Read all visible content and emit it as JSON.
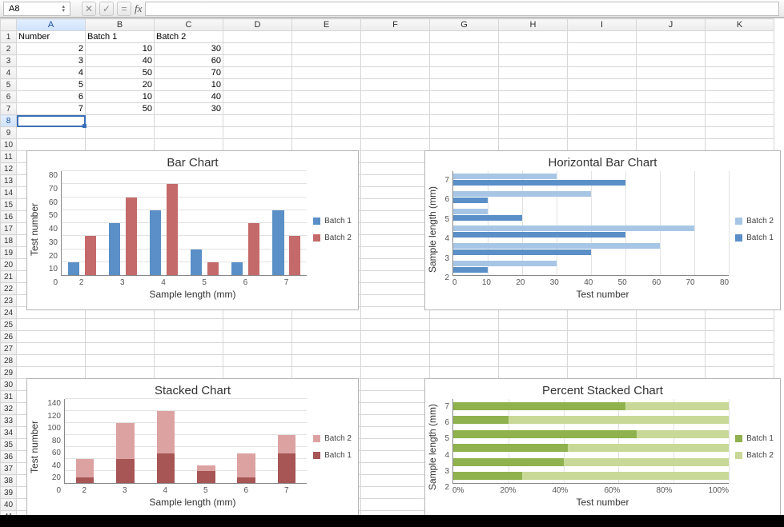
{
  "workbook": {
    "active_cell_ref": "A8",
    "columns": [
      "A",
      "B",
      "C",
      "D",
      "E",
      "F",
      "G",
      "H",
      "I",
      "J",
      "K"
    ],
    "row_count": 41,
    "headers": {
      "A": "Number",
      "B": "Batch 1",
      "C": "Batch 2"
    },
    "data_rows": [
      {
        "A": 2,
        "B": 10,
        "C": 30
      },
      {
        "A": 3,
        "B": 40,
        "C": 60
      },
      {
        "A": 4,
        "B": 50,
        "C": 70
      },
      {
        "A": 5,
        "B": 20,
        "C": 10
      },
      {
        "A": 6,
        "B": 10,
        "C": 40
      },
      {
        "A": 7,
        "B": 50,
        "C": 30
      }
    ]
  },
  "charts": {
    "bar_chart": {
      "type": "bar",
      "title": "Bar Chart",
      "xlabel": "Sample length (mm)",
      "ylabel": "Test number",
      "categories": [
        2,
        3,
        4,
        5,
        6,
        7
      ],
      "series": [
        {
          "name": "Batch 1",
          "values": [
            10,
            40,
            50,
            20,
            10,
            50
          ],
          "color": "#5a8fc7"
        },
        {
          "name": "Batch 2",
          "values": [
            30,
            60,
            70,
            10,
            40,
            30
          ],
          "color": "#c56a6a"
        }
      ],
      "ylim": [
        0,
        80
      ],
      "ytick_step": 10,
      "grid_color": "#e2e2e2",
      "bar_group_gap": 0.4
    },
    "hbar_chart": {
      "type": "hbar",
      "title": "Horizontal Bar Chart",
      "xlabel": "Test number",
      "ylabel": "Sample length (mm)",
      "categories": [
        2,
        3,
        4,
        5,
        6,
        7
      ],
      "series": [
        {
          "name": "Batch 2",
          "values": [
            30,
            60,
            70,
            10,
            40,
            30
          ],
          "color": "#a7c6e6"
        },
        {
          "name": "Batch 1",
          "values": [
            10,
            40,
            50,
            20,
            10,
            50
          ],
          "color": "#5a8fc7"
        }
      ],
      "xlim": [
        0,
        80
      ],
      "xtick_step": 10,
      "grid_color": "#e2e2e2"
    },
    "stacked_chart": {
      "type": "stacked-bar",
      "title": "Stacked Chart",
      "xlabel": "Sample length (mm)",
      "ylabel": "Test number",
      "categories": [
        2,
        3,
        4,
        5,
        6,
        7
      ],
      "series": [
        {
          "name": "Batch 2",
          "values": [
            30,
            60,
            70,
            10,
            40,
            30
          ],
          "color": "#dca2a2"
        },
        {
          "name": "Batch 1",
          "values": [
            10,
            40,
            50,
            20,
            10,
            50
          ],
          "color": "#a75555"
        }
      ],
      "ylim": [
        0,
        140
      ],
      "ytick_step": 20,
      "grid_color": "#e2e2e2"
    },
    "pct_stacked_chart": {
      "type": "percent-stacked-hbar",
      "title": "Percent Stacked Chart",
      "xlabel": "Test number",
      "ylabel": "Sample length (mm)",
      "categories": [
        2,
        3,
        4,
        5,
        6,
        7
      ],
      "series": [
        {
          "name": "Batch 1",
          "values": [
            10,
            40,
            50,
            20,
            10,
            50
          ],
          "color": "#8fb24e"
        },
        {
          "name": "Batch 2",
          "values": [
            30,
            60,
            70,
            10,
            40,
            30
          ],
          "color": "#c8d997"
        }
      ],
      "xticks": [
        "0%",
        "20%",
        "40%",
        "60%",
        "80%",
        "100%"
      ],
      "grid_color": "#e2e2e2"
    }
  }
}
